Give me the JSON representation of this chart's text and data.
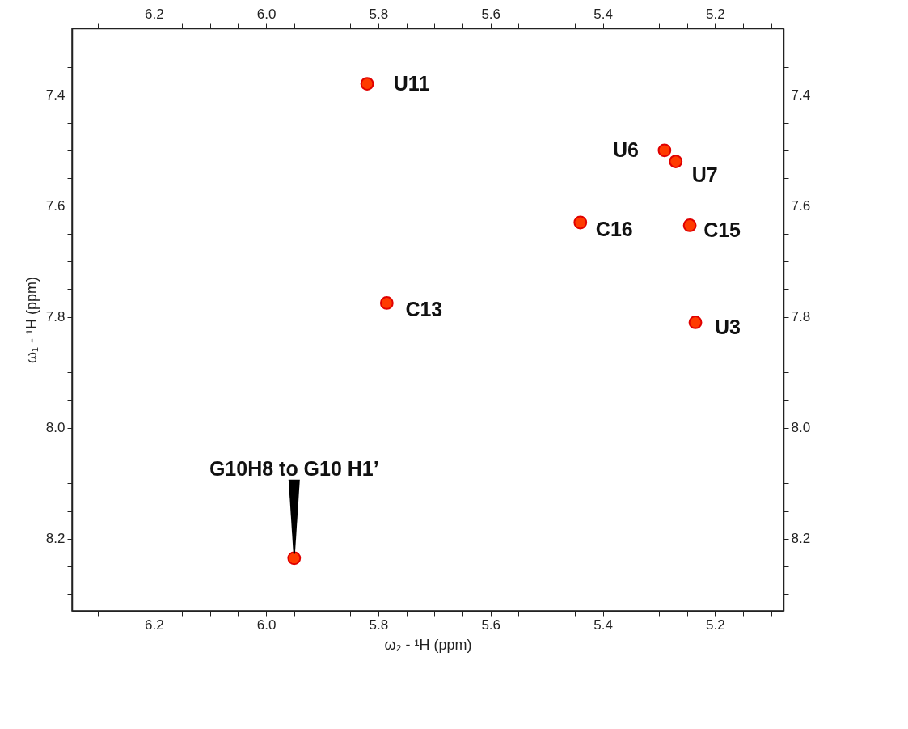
{
  "chart_data": {
    "type": "scatter",
    "xlabel": "ω₂ - ¹H  (ppm)",
    "ylabel": "ω₁ - ¹H  (ppm)",
    "x": [
      5.82,
      5.29,
      5.27,
      5.44,
      5.245,
      5.785,
      5.235,
      5.95
    ],
    "series": [
      {
        "color": "#ff3b00",
        "values": [
          7.38,
          7.5,
          7.52,
          7.63,
          7.635,
          7.775,
          7.81,
          8.235
        ]
      }
    ],
    "marker": "circle",
    "xlim": [
      6.346,
      5.078
    ],
    "xticks": [
      {
        "value": 6.3,
        "label": null
      },
      6.2,
      {
        "value": 6.15,
        "label": null
      },
      {
        "value": 6.1,
        "label": null
      },
      {
        "value": 6.05,
        "label": null
      },
      {
        "value": 6,
        "label": "6.0"
      },
      {
        "value": 5.95,
        "label": null
      },
      {
        "value": 5.9,
        "label": null
      },
      {
        "value": 5.85,
        "label": null
      },
      5.8,
      {
        "value": 5.75,
        "label": null
      },
      {
        "value": 5.7,
        "label": null
      },
      {
        "value": 5.65,
        "label": null
      },
      5.6,
      {
        "value": 5.55,
        "label": null
      },
      {
        "value": 5.5,
        "label": null
      },
      {
        "value": 5.45,
        "label": null
      },
      5.4,
      {
        "value": 5.35,
        "label": null
      },
      {
        "value": 5.3,
        "label": null
      },
      {
        "value": 5.25,
        "label": null
      },
      5.2,
      {
        "value": 5.15,
        "label": null
      },
      {
        "value": 5.1,
        "label": null
      }
    ],
    "x2lim": [
      6.346,
      5.078
    ],
    "x2ticks": [
      {
        "value": 6.3,
        "label": null
      },
      6.2,
      {
        "value": 6.15,
        "label": null
      },
      {
        "value": 6.1,
        "label": null
      },
      {
        "value": 6.05,
        "label": null
      },
      {
        "value": 6,
        "label": "6.0"
      },
      {
        "value": 5.95,
        "label": null
      },
      {
        "value": 5.9,
        "label": null
      },
      {
        "value": 5.85,
        "label": null
      },
      5.8,
      {
        "value": 5.75,
        "label": null
      },
      {
        "value": 5.7,
        "label": null
      },
      {
        "value": 5.65,
        "label": null
      },
      5.6,
      {
        "value": 5.55,
        "label": null
      },
      {
        "value": 5.5,
        "label": null
      },
      {
        "value": 5.45,
        "label": null
      },
      5.4,
      {
        "value": 5.35,
        "label": null
      },
      {
        "value": 5.3,
        "label": null
      },
      {
        "value": 5.25,
        "label": null
      },
      5.2,
      {
        "value": 5.15,
        "label": null
      },
      {
        "value": 5.1,
        "label": null
      }
    ],
    "ylim": [
      8.33,
      7.28
    ],
    "yticks": [
      {
        "value": 7.3,
        "label": null
      },
      {
        "value": 7.35,
        "label": null
      },
      7.4,
      {
        "value": 7.45,
        "label": null
      },
      {
        "value": 7.5,
        "label": null
      },
      {
        "value": 7.55,
        "label": null
      },
      7.6,
      {
        "value": 7.65,
        "label": null
      },
      {
        "value": 7.7,
        "label": null
      },
      {
        "value": 7.75,
        "label": null
      },
      7.8,
      {
        "value": 7.85,
        "label": null
      },
      {
        "value": 7.9,
        "label": null
      },
      {
        "value": 7.95,
        "label": null
      },
      {
        "value": 8,
        "label": "8.0"
      },
      {
        "value": 8.05,
        "label": null
      },
      {
        "value": 8.1,
        "label": null
      },
      {
        "value": 8.15,
        "label": null
      },
      8.2,
      {
        "value": 8.25,
        "label": null
      },
      {
        "value": 8.3,
        "label": null
      }
    ],
    "y2lim": [
      8.33,
      7.28
    ],
    "y2ticks": [
      {
        "value": 7.3,
        "label": null
      },
      {
        "value": 7.35,
        "label": null
      },
      7.4,
      {
        "value": 7.45,
        "label": null
      },
      {
        "value": 7.5,
        "label": null
      },
      {
        "value": 7.55,
        "label": null
      },
      7.6,
      {
        "value": 7.65,
        "label": null
      },
      {
        "value": 7.7,
        "label": null
      },
      {
        "value": 7.75,
        "label": null
      },
      7.8,
      {
        "value": 7.85,
        "label": null
      },
      {
        "value": 7.9,
        "label": null
      },
      {
        "value": 7.95,
        "label": null
      },
      {
        "value": 8,
        "label": "8.0"
      },
      {
        "value": 8.05,
        "label": null
      },
      {
        "value": 8.1,
        "label": null
      },
      {
        "value": 8.15,
        "label": null
      },
      8.2,
      {
        "value": 8.25,
        "label": null
      },
      {
        "value": 8.3,
        "label": null
      }
    ],
    "grid": false,
    "legend": false,
    "annotations": [
      {
        "text": "U11",
        "x": 5.82,
        "y": 7.38
      },
      {
        "text": "U6",
        "x": 5.29,
        "y": 7.5
      },
      {
        "text": "U7",
        "x": 5.27,
        "y": 7.52
      },
      {
        "text": "C16",
        "x": 5.44,
        "y": 7.63
      },
      {
        "text": "C15",
        "x": 5.245,
        "y": 7.635
      },
      {
        "text": "C13",
        "x": 5.785,
        "y": 7.775
      },
      {
        "text": "U3",
        "x": 5.235,
        "y": 7.81
      },
      {
        "text": "G10H8 to G10 H1’",
        "x": 5.95,
        "y": 8.235
      }
    ]
  }
}
